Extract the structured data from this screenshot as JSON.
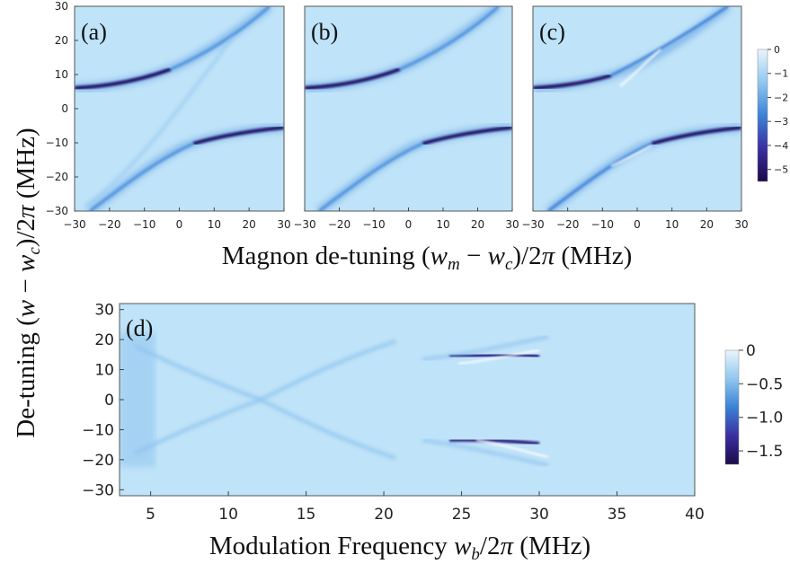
{
  "figure": {
    "xlabel_top": "Magnon de-tuning (w_m − w_c)/2π (MHz)",
    "ylabel": "De-tuning (w − w_c)/2π (MHz)",
    "xlabel_bottom": "Modulation Frequency w_b/2π (MHz)"
  },
  "chart_data": [
    {
      "type": "heatmap",
      "panel": "(a)",
      "x_range": [
        -30,
        30
      ],
      "y_range": [
        -30,
        30
      ],
      "x_ticks": [
        "-30",
        "-20",
        "-10",
        "0",
        "10",
        "20",
        "30"
      ],
      "y_ticks": [
        "30",
        "20",
        "10",
        "0",
        "-10",
        "-20",
        "-30"
      ],
      "description": "Anti-crossing of cavity-magnon polariton branches, upper branch approaching 6 MHz at x=-30, lower branch approaching -6 MHz at x=30"
    },
    {
      "type": "heatmap",
      "panel": "(b)",
      "x_range": [
        -30,
        30
      ],
      "y_range": [
        -30,
        30
      ],
      "x_ticks": [
        "-30",
        "-20",
        "-10",
        "0",
        "10",
        "20",
        "30"
      ]
    },
    {
      "type": "heatmap",
      "panel": "(c)",
      "x_range": [
        -30,
        30
      ],
      "y_range": [
        -30,
        30
      ],
      "x_ticks": [
        "-30",
        "-20",
        "-10",
        "0",
        "10",
        "20",
        "30"
      ],
      "colorbar_ticks": [
        "0",
        "-1",
        "-2",
        "-3",
        "-4",
        "-5"
      ],
      "colorbar_range": [
        -5.5,
        0
      ]
    },
    {
      "type": "heatmap",
      "panel": "(d)",
      "x_range": [
        3,
        40
      ],
      "y_range": [
        -32,
        32
      ],
      "x_ticks": [
        "5",
        "10",
        "15",
        "20",
        "25",
        "30",
        "35",
        "40"
      ],
      "y_ticks": [
        "30",
        "20",
        "10",
        "0",
        "-10",
        "-20",
        "-30"
      ],
      "bands_y": [
        14,
        -14
      ],
      "colorbar_ticks": [
        "0",
        "-0.5",
        "-1.0",
        "-1.5"
      ],
      "colorbar_range": [
        -1.7,
        0
      ]
    }
  ]
}
